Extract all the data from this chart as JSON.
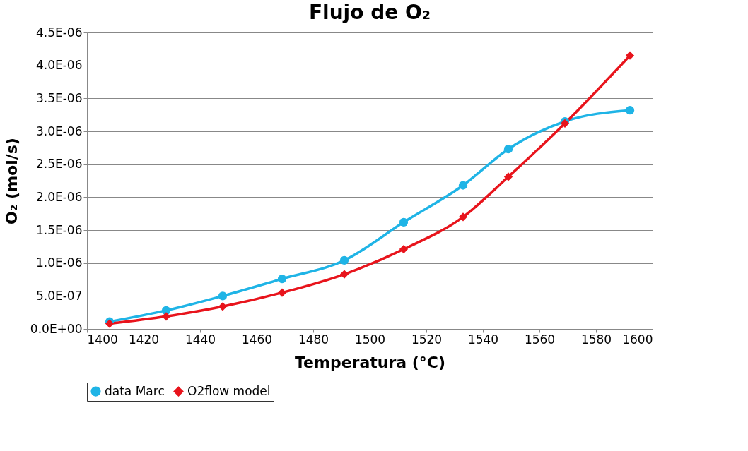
{
  "chart_data": {
    "type": "line",
    "title": "Flujo de O₂",
    "xlabel": "Temperatura (°C)",
    "ylabel": "O₂  (mol/s)",
    "xlim": [
      1400,
      1600
    ],
    "xticks": [
      1400,
      1420,
      1440,
      1460,
      1480,
      1500,
      1520,
      1540,
      1560,
      1580,
      1600
    ],
    "ylim": [
      0,
      4.5e-06
    ],
    "yticks": [
      {
        "value": 0,
        "label": "0.0E+00"
      },
      {
        "value": 5e-07,
        "label": "5.0E-07"
      },
      {
        "value": 1e-06,
        "label": "1.0E-06"
      },
      {
        "value": 1.5e-06,
        "label": "1.5E-06"
      },
      {
        "value": 2e-06,
        "label": "2.0E-06"
      },
      {
        "value": 2.5e-06,
        "label": "2.5E-06"
      },
      {
        "value": 3e-06,
        "label": "3.0E-06"
      },
      {
        "value": 3.5e-06,
        "label": "3.5E-06"
      },
      {
        "value": 4e-06,
        "label": "4.0E-06"
      },
      {
        "value": 4.5e-06,
        "label": "4.5E-06"
      }
    ],
    "x": [
      1408,
      1428,
      1448,
      1469,
      1491,
      1512,
      1533,
      1549,
      1569,
      1592
    ],
    "series": [
      {
        "name": "data Marc",
        "color": "#1fb4e6",
        "marker": "circle",
        "values": [
          1.1e-07,
          2.8e-07,
          5e-07,
          7.6e-07,
          1.04e-06,
          1.62e-06,
          2.18e-06,
          2.73e-06,
          3.15e-06,
          3.32e-06
        ]
      },
      {
        "name": "O2flow model",
        "color": "#e8141c",
        "marker": "diamond",
        "values": [
          8e-08,
          1.9e-07,
          3.4e-07,
          5.5e-07,
          8.3e-07,
          1.21e-06,
          1.7e-06,
          2.31e-06,
          3.12e-06,
          4.15e-06
        ]
      }
    ],
    "grid": "y",
    "legend": "bottom left",
    "line_style": "solid"
  }
}
